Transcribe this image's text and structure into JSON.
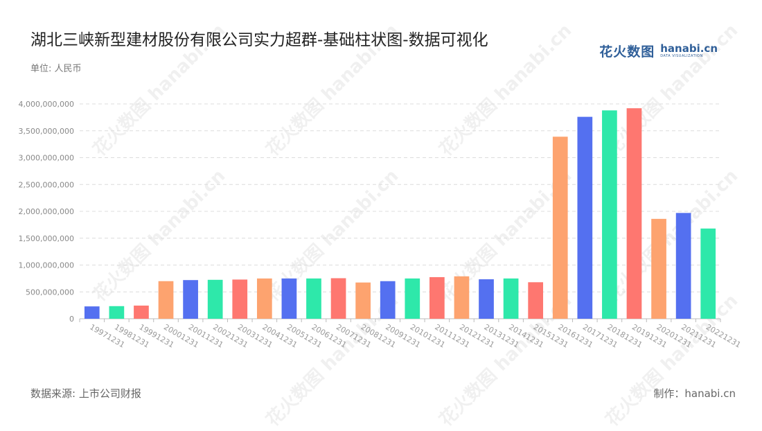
{
  "title": "湖北三峡新型建材股份有限公司实力超群-基础柱状图-数据可视化",
  "unit_label": "单位: 人民币",
  "source_label": "数据来源: 上市公司财报",
  "credit_label": "制作：hanabi.cn",
  "brand": {
    "cn_part1": "花火",
    "cn_part2": "数图",
    "en_name": "hanabi.cn",
    "en_sub": "DATA VISUALIZATION",
    "color": "#2f5f99"
  },
  "watermark_text": "花火数图 hanabi.cn",
  "palette": [
    "#5470f0",
    "#2ee8aa",
    "#fe7770",
    "#fda36f"
  ],
  "chart_data": {
    "type": "bar",
    "title": "湖北三峡新型建材股份有限公司实力超群-基础柱状图-数据可视化",
    "xlabel": "",
    "ylabel": "",
    "ylim": [
      0,
      4000000000
    ],
    "yticks": [
      0,
      500000000,
      1000000000,
      1500000000,
      2000000000,
      2500000000,
      3000000000,
      3500000000,
      4000000000
    ],
    "ytick_labels": [
      "0",
      "500,000,000",
      "1,000,000,000",
      "1,500,000,000",
      "2,000,000,000",
      "2,500,000,000",
      "3,000,000,000",
      "3,500,000,000",
      "4,000,000,000"
    ],
    "grid": true,
    "categories": [
      "19971231",
      "19981231",
      "19991231",
      "20001231",
      "20011231",
      "20021231",
      "20031231",
      "20041231",
      "20051231",
      "20061231",
      "20071231",
      "20081231",
      "20091231",
      "20101231",
      "20111231",
      "20121231",
      "20131231",
      "20141231",
      "20151231",
      "20161231",
      "20171231",
      "20181231",
      "20191231",
      "20201231",
      "20211231",
      "20221231"
    ],
    "values": [
      230000000,
      235000000,
      245000000,
      700000000,
      720000000,
      725000000,
      730000000,
      750000000,
      750000000,
      750000000,
      755000000,
      675000000,
      700000000,
      750000000,
      775000000,
      790000000,
      735000000,
      750000000,
      680000000,
      3390000000,
      3760000000,
      3880000000,
      3920000000,
      1860000000,
      1970000000,
      1680000000
    ],
    "bar_colors": [
      "#5470f0",
      "#2ee8aa",
      "#fe7770",
      "#fda36f",
      "#5470f0",
      "#2ee8aa",
      "#fe7770",
      "#fda36f",
      "#5470f0",
      "#2ee8aa",
      "#fe7770",
      "#fda36f",
      "#5470f0",
      "#2ee8aa",
      "#fe7770",
      "#fda36f",
      "#5470f0",
      "#2ee8aa",
      "#fe7770",
      "#fda36f",
      "#5470f0",
      "#2ee8aa",
      "#fe7770",
      "#fda36f",
      "#5470f0",
      "#2ee8aa"
    ]
  }
}
